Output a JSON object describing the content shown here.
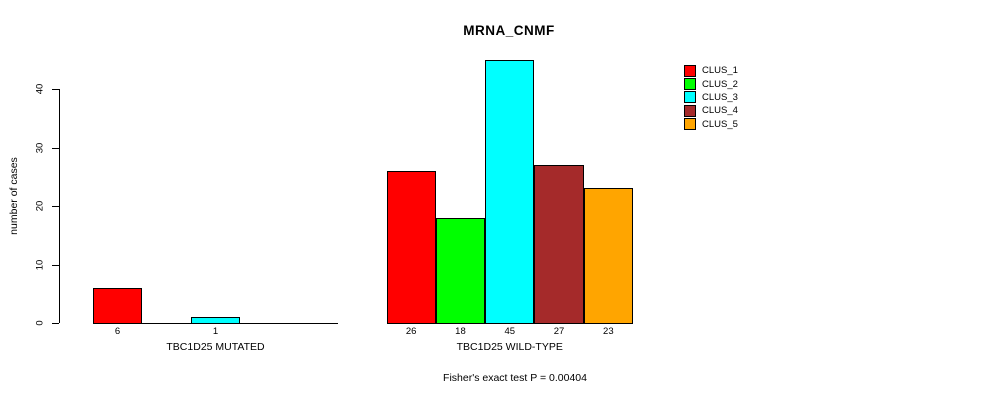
{
  "title": "MRNA_CNMF",
  "caption": "Fisher's exact test P = 0.00404",
  "chart_data": {
    "type": "bar",
    "title": "MRNA_CNMF",
    "xlabel": "",
    "ylabel": "number of cases",
    "ylim": [
      0,
      45
    ],
    "yticks": [
      0,
      10,
      20,
      30,
      40
    ],
    "grid": false,
    "legend_position": "right",
    "legend": [
      "CLUS_1",
      "CLUS_2",
      "CLUS_3",
      "CLUS_4",
      "CLUS_5"
    ],
    "colors": [
      "#FF0000",
      "#00FF00",
      "#00FFFF",
      "#A52A2A",
      "#FFA500"
    ],
    "groups": [
      {
        "label": "TBC1D25 MUTATED",
        "categories": [
          "CLUS_1",
          "CLUS_2",
          "CLUS_3",
          "CLUS_4",
          "CLUS_5"
        ],
        "values": [
          6,
          0,
          1,
          0,
          0
        ]
      },
      {
        "label": "TBC1D25 WILD-TYPE",
        "categories": [
          "CLUS_1",
          "CLUS_2",
          "CLUS_3",
          "CLUS_4",
          "CLUS_5"
        ],
        "values": [
          26,
          18,
          45,
          27,
          23
        ]
      }
    ],
    "zero_values_unlabeled": true,
    "annotation": "Fisher's exact test P = 0.00404"
  }
}
